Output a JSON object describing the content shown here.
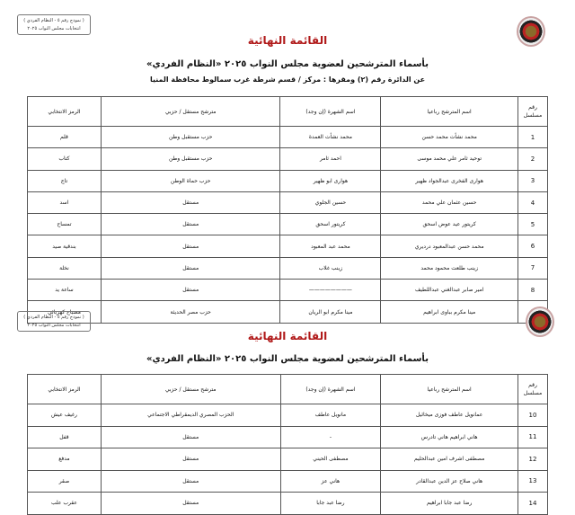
{
  "stamp": {
    "line1": "( نموذج رقم ٥ - النظام الفردي )",
    "line2": "انتخابات مجلس النواب ٢٠٢٥"
  },
  "title": "القائمة النهائية",
  "subtitle": "بأسماء المترشحين لعضوية مجلس النواب ٢٠٢٥ «النظام الفردي»",
  "district": "عن الدائرة رقم (٢)   ومقرها : مركز / قسم شرطة  غرب سمالوط   محافظة المنيا",
  "headers": {
    "num": "رقم مسلسل",
    "name": "اسم المترشح رباعيا",
    "nick": "اسم الشهرة (إن وجد)",
    "aff": "مترشح مستقل / حزبي",
    "sym": "الرمز الانتخابي"
  },
  "page1_rows": [
    {
      "num": "1",
      "name": "محمد نشأت محمد حسن",
      "nick": "محمد نشأت العمدة",
      "aff": "حزب مستقبل وطن",
      "sym": "قلم"
    },
    {
      "num": "2",
      "name": "توحيد ثامر علي محمد موسى",
      "nick": "احمد ثامر",
      "aff": "حزب مستقبل وطن",
      "sym": "كتاب"
    },
    {
      "num": "3",
      "name": "هوارى الفخرى عبدالجواد ظهير",
      "nick": "هوارى ابو ظهير",
      "aff": "حزب حماة الوطن",
      "sym": "تاج"
    },
    {
      "num": "4",
      "name": "حسين عثمان علي محمد",
      "nick": "حسين الجلوي",
      "aff": "مستقل",
      "sym": "اسد"
    },
    {
      "num": "5",
      "name": "كريتور عيد عوض اسحق",
      "nick": "كريتور اسحق",
      "aff": "مستقل",
      "sym": "تمساح"
    },
    {
      "num": "6",
      "name": "محمد حسن عبدالمعبود درديري",
      "nick": "محمد عبد المعبود",
      "aff": "مستقل",
      "sym": "بندقية صيد"
    },
    {
      "num": "7",
      "name": "زينب طلعت محمود محمد",
      "nick": "زينب غلاب",
      "aff": "مستقل",
      "sym": "نخلة"
    },
    {
      "num": "8",
      "name": "امير صابر عبدالغني عبداللطيف",
      "nick": "————————",
      "aff": "مستقل",
      "sym": "ساعة يد"
    },
    {
      "num": "9",
      "name": "مينا مكرم بباوى ابراهيم",
      "nick": "مينا مكرم ابو الريان",
      "aff": "حزب مصر الحديثة",
      "sym": "مصباح كهربائي"
    }
  ],
  "page2_rows": [
    {
      "num": "10",
      "name": "عمانويل عاطف فوزى ميخائيل",
      "nick": "مانويل عاطف",
      "aff": "الحزب المصري الديمقراطي الاجتماعي",
      "sym": "رغيف عيش"
    },
    {
      "num": "11",
      "name": "هاني ابراهيم هاني تادرس",
      "nick": "-",
      "aff": "مستقل",
      "sym": "قفل"
    },
    {
      "num": "12",
      "name": "مصطفى اشرف امين عبدالحليم",
      "nick": "مصطفى الحيني",
      "aff": "مستقل",
      "sym": "مدفع"
    },
    {
      "num": "13",
      "name": "هاني صلاح عز الدين عبدالقادر",
      "nick": "هاني عز",
      "aff": "مستقل",
      "sym": "صقر"
    },
    {
      "num": "14",
      "name": "رضا عبد جابا ابراهيم",
      "nick": "رضا عبد جابا",
      "aff": "مستقل",
      "sym": "عقرب علب"
    }
  ]
}
